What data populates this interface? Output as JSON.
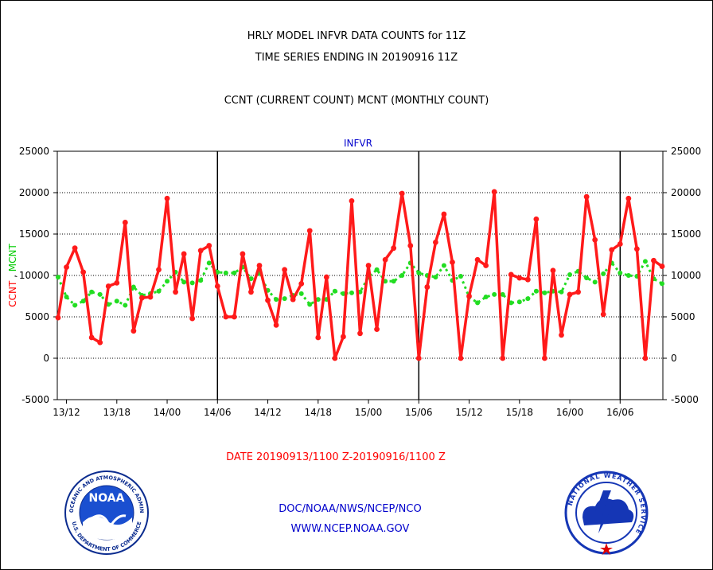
{
  "header": {
    "title1": "HRLY MODEL INFVR DATA COUNTS for 11Z",
    "title2": "TIME SERIES ENDING IN 20190916 11Z",
    "title3": "CCNT (CURRENT COUNT) MCNT (MONTHLY COUNT)"
  },
  "footer": {
    "date_range": "DATE 20190913/1100 Z-20190916/1100 Z",
    "org": "DOC/NOAA/NWS/NCEP/NCO",
    "url": "WWW.NCEP.NOAA.GOV"
  },
  "logos": {
    "noaa_label": "NOAA",
    "noaa_ring_top": "NATIONAL OCEANIC AND ATMOSPHERIC ADMINISTRATION",
    "noaa_ring_bottom": "U.S. DEPARTMENT OF COMMERCE",
    "nws_ring": "NATIONAL WEATHER SERVICE"
  },
  "colors": {
    "ccnt": "#ff1a1a",
    "mcnt": "#22dd22",
    "title": "#0000cc",
    "date": "#ff0000"
  },
  "chart_data": {
    "type": "line",
    "title": "INFVR",
    "ylabel_left_parts": [
      {
        "text": "CCNT",
        "color": "#ff0000"
      },
      {
        "text": " , ",
        "color": "#000000"
      },
      {
        "text": "MCNT",
        "color": "#00cc00"
      }
    ],
    "ylim": [
      -5000,
      25000
    ],
    "yticks": [
      -5000,
      0,
      5000,
      10000,
      15000,
      20000,
      25000
    ],
    "xticks": [
      "13/12",
      "13/18",
      "14/00",
      "14/06",
      "14/12",
      "14/18",
      "15/00",
      "15/06",
      "15/12",
      "15/18",
      "16/00",
      "16/06"
    ],
    "xtick_hour_index": [
      1,
      7,
      13,
      19,
      25,
      31,
      37,
      43,
      49,
      55,
      61,
      67
    ],
    "day_boundaries_hour_index": [
      19,
      43,
      67
    ],
    "hours": 73,
    "grid": true,
    "series": [
      {
        "name": "CCNT",
        "color": "#ff1a1a",
        "values": [
          4900,
          11000,
          13300,
          10400,
          2500,
          1900,
          8700,
          9100,
          16400,
          3300,
          7300,
          7400,
          10700,
          19300,
          8000,
          12600,
          4800,
          13000,
          13600,
          8700,
          5000,
          5000,
          12600,
          8000,
          11200,
          7000,
          4000,
          10700,
          7100,
          9000,
          15400,
          2500,
          9800,
          0,
          2600,
          19000,
          3000,
          11200,
          3500,
          11900,
          13300,
          19900,
          13600,
          0,
          8600,
          14000,
          17400,
          11600,
          0,
          7500,
          11900,
          11200,
          20100,
          0,
          10100,
          9700,
          9500,
          16800,
          0,
          10600,
          2800,
          7700,
          8000,
          19500,
          14300,
          5300,
          13100,
          13800,
          19300,
          13200,
          0,
          11800,
          11100
        ]
      },
      {
        "name": "MCNT",
        "color": "#22dd22",
        "values": [
          9800,
          7400,
          6400,
          6900,
          8000,
          7700,
          6500,
          6900,
          6400,
          8600,
          7600,
          7800,
          8100,
          9300,
          10400,
          9200,
          9100,
          9400,
          11500,
          10400,
          10300,
          10300,
          11000,
          9600,
          10300,
          8200,
          7100,
          7200,
          7600,
          7800,
          6500,
          7100,
          7100,
          8100,
          7800,
          7900,
          8000,
          9800,
          10700,
          9300,
          9300,
          10000,
          11500,
          10300,
          10000,
          9800,
          11200,
          9400,
          9900,
          7400,
          6700,
          7400,
          7700,
          7700,
          6700,
          6800,
          7200,
          8100,
          7900,
          8100,
          8000,
          10100,
          10500,
          9700,
          9200,
          10200,
          11500,
          10300,
          10000,
          9900,
          11700,
          9600,
          9000
        ]
      }
    ]
  }
}
